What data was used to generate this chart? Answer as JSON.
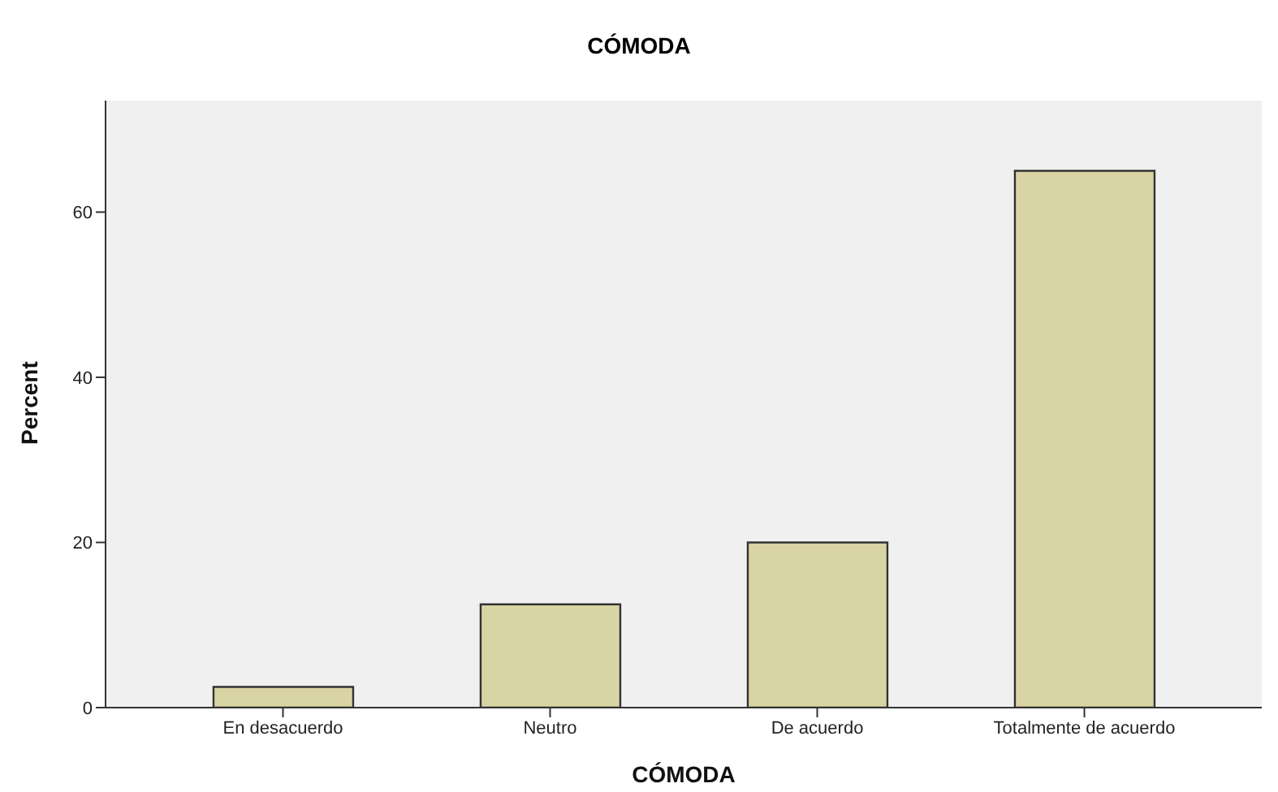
{
  "chart_data": {
    "type": "bar",
    "title": "CÓMODA",
    "xlabel": "CÓMODA",
    "ylabel": "Percent",
    "categories": [
      "En desacuerdo",
      "Neutro",
      "De acuerdo",
      "Totalmente de acuerdo"
    ],
    "values": [
      2.5,
      12.5,
      20,
      65
    ],
    "color": "#d9d4a3",
    "ylim": [
      0,
      73.5
    ],
    "yticks": [
      0,
      20,
      40,
      60
    ],
    "grid": false,
    "legend": false
  }
}
